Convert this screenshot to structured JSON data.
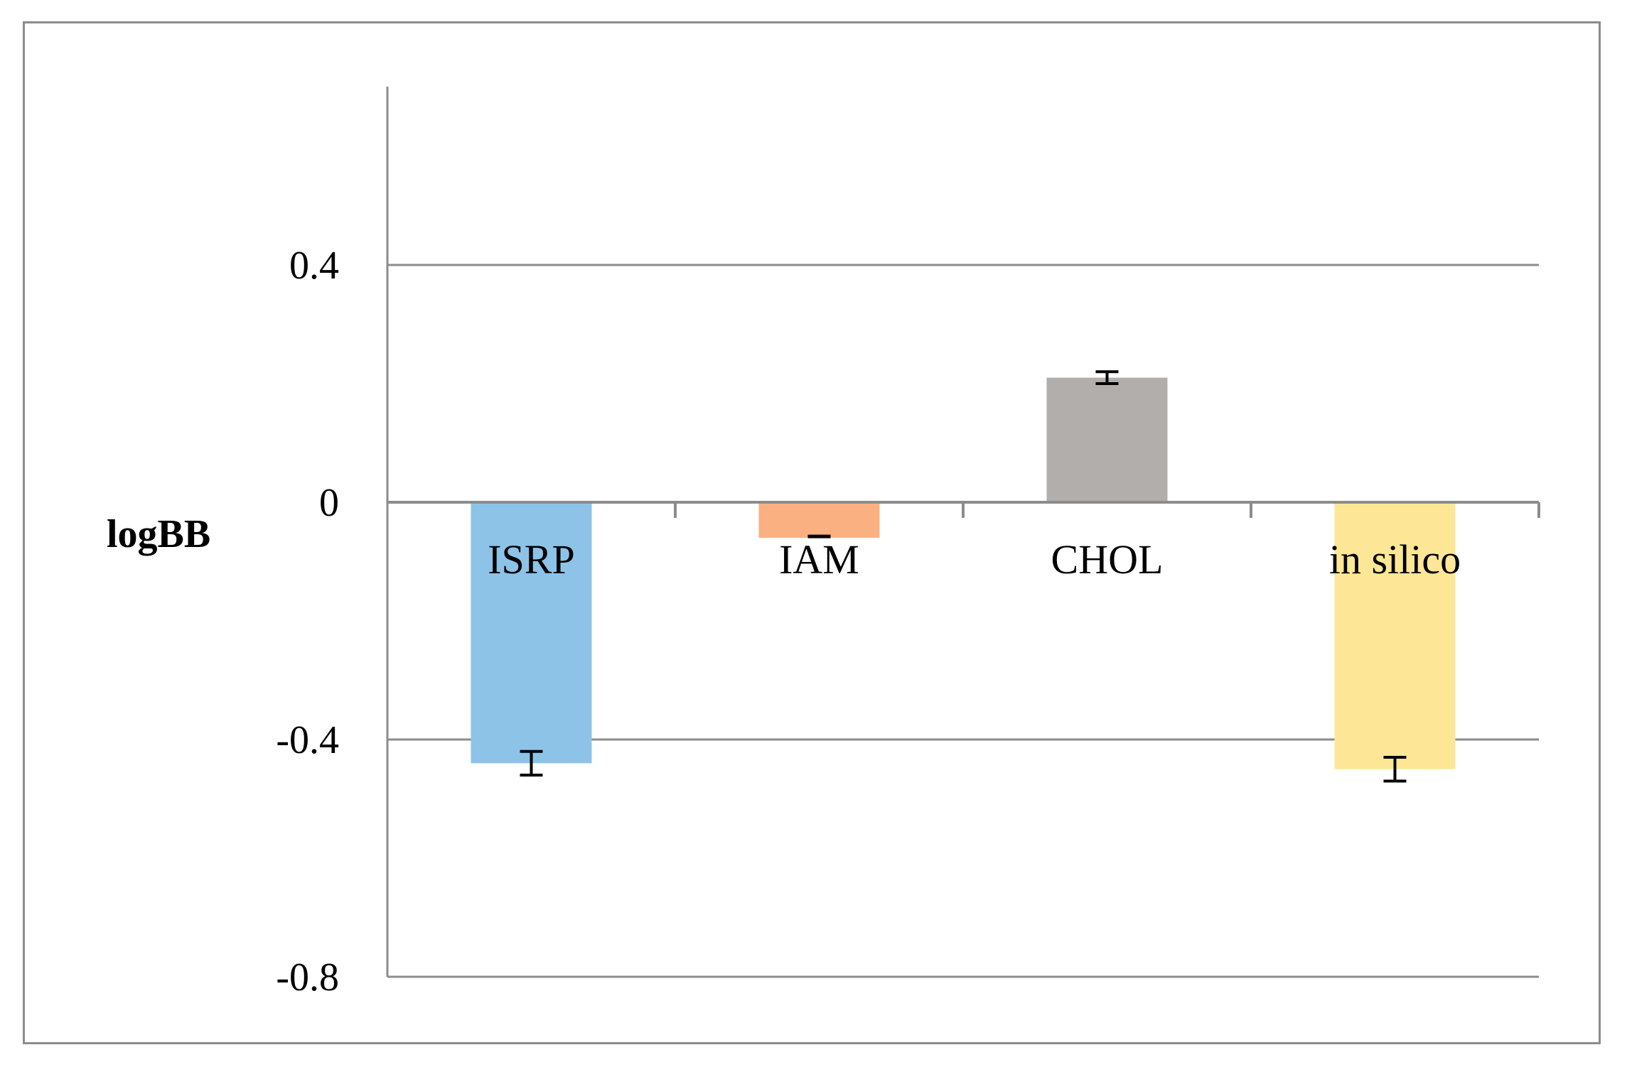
{
  "chart_data": {
    "type": "bar",
    "title": "",
    "xlabel": "",
    "ylabel": "logBB",
    "categories": [
      "ISRP",
      "IAM",
      "CHOL",
      "in silico"
    ],
    "series": [
      {
        "values": [
          -0.44,
          -0.06,
          0.21,
          -0.45
        ],
        "errors": [
          0.02,
          0.0,
          0.01,
          0.02
        ],
        "colors": [
          "#8ec3e8",
          "#fbb081",
          "#b2aeac",
          "#fde796"
        ]
      }
    ],
    "ylim": [
      -0.8,
      0.7
    ],
    "yticks": [
      -0.8,
      -0.4,
      0,
      0.4
    ],
    "ytick_labels": [
      "-0.8",
      "-0.4",
      "0",
      "0.4"
    ],
    "grid": true,
    "legend": "none",
    "axis_color": "#8c8c8c"
  }
}
